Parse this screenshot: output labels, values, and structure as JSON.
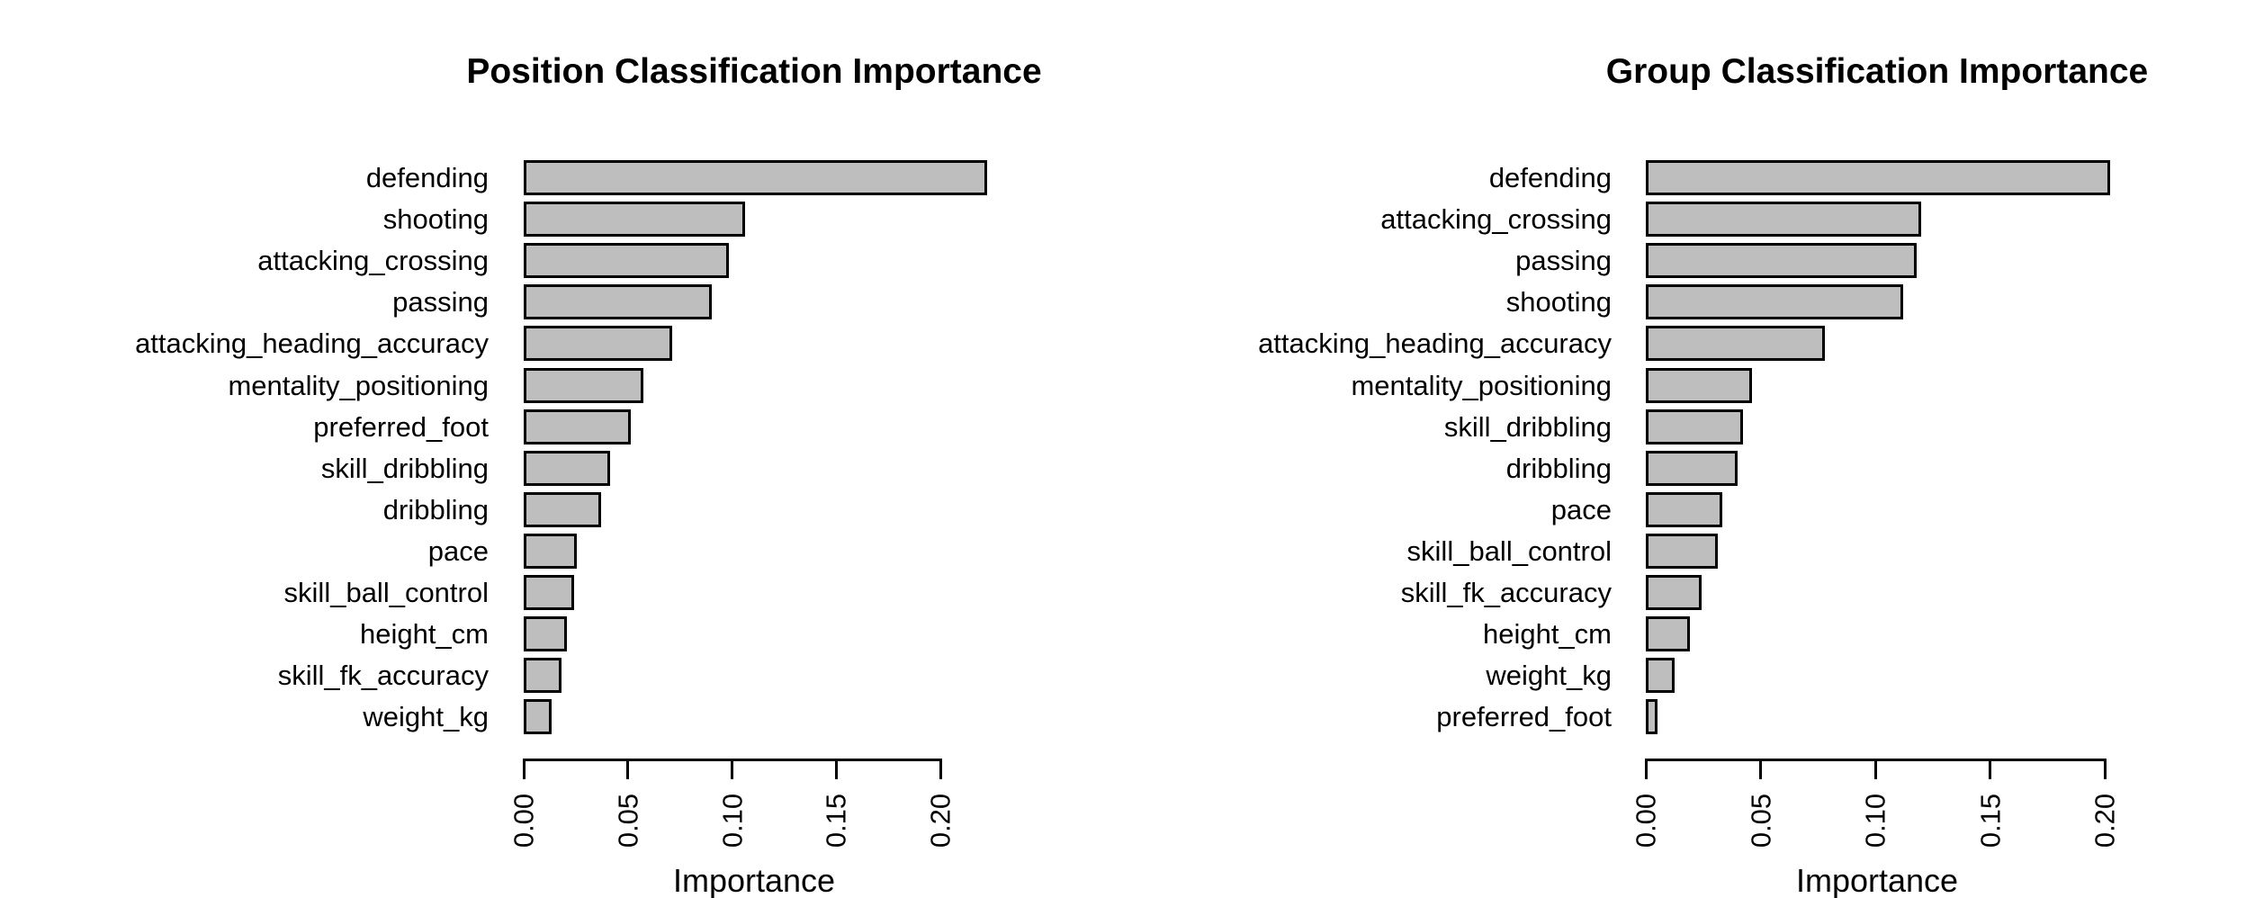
{
  "page": {
    "background": "#ffffff",
    "text_color": "#000000"
  },
  "chart_data": [
    {
      "type": "bar",
      "orientation": "horizontal",
      "title": "Position Classification Importance",
      "xlabel": "Importance",
      "xlim": [
        0,
        0.2
      ],
      "xtick_values": [
        0.0,
        0.05,
        0.1,
        0.15,
        0.2
      ],
      "xtick_labels": [
        "0.00",
        "0.05",
        "0.10",
        "0.15",
        "0.20"
      ],
      "grid": false,
      "legend": false,
      "bar_color": "#BEBEBE",
      "bar_border_color": "#000000",
      "categories": [
        "defending",
        "shooting",
        "attacking_crossing",
        "passing",
        "attacking_heading_accuracy",
        "mentality_positioning",
        "preferred_foot",
        "skill_dribbling",
        "dribbling",
        "pace",
        "skill_ball_control",
        "height_cm",
        "skill_fk_accuracy",
        "weight_kg"
      ],
      "values": [
        0.221,
        0.105,
        0.097,
        0.089,
        0.07,
        0.056,
        0.05,
        0.04,
        0.036,
        0.024,
        0.023,
        0.0195,
        0.017,
        0.012
      ]
    },
    {
      "type": "bar",
      "orientation": "horizontal",
      "title": "Group Classification Importance",
      "xlabel": "Importance",
      "xlim": [
        0,
        0.2
      ],
      "xtick_values": [
        0.0,
        0.05,
        0.1,
        0.15,
        0.2
      ],
      "xtick_labels": [
        "0.00",
        "0.05",
        "0.10",
        "0.15",
        "0.20"
      ],
      "grid": false,
      "legend": false,
      "bar_color": "#BEBEBE",
      "bar_border_color": "#000000",
      "categories": [
        "defending",
        "attacking_crossing",
        "passing",
        "shooting",
        "attacking_heading_accuracy",
        "mentality_positioning",
        "skill_dribbling",
        "dribbling",
        "pace",
        "skill_ball_control",
        "skill_fk_accuracy",
        "height_cm",
        "weight_kg",
        "preferred_foot"
      ],
      "values": [
        0.201,
        0.119,
        0.117,
        0.111,
        0.077,
        0.045,
        0.041,
        0.039,
        0.032,
        0.03,
        0.023,
        0.018,
        0.0115,
        0.004
      ]
    }
  ]
}
